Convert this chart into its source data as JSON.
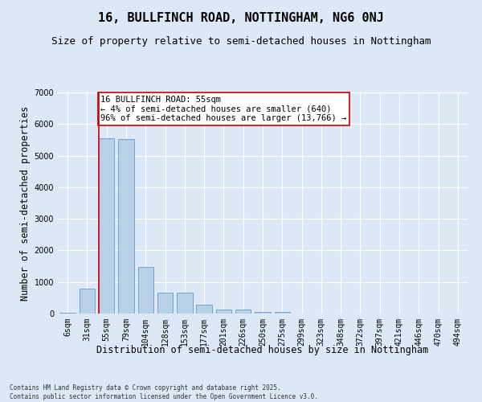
{
  "title": "16, BULLFINCH ROAD, NOTTINGHAM, NG6 0NJ",
  "subtitle": "Size of property relative to semi-detached houses in Nottingham",
  "xlabel": "Distribution of semi-detached houses by size in Nottingham",
  "ylabel": "Number of semi-detached properties",
  "categories": [
    "6sqm",
    "31sqm",
    "55sqm",
    "79sqm",
    "104sqm",
    "128sqm",
    "153sqm",
    "177sqm",
    "201sqm",
    "226sqm",
    "250sqm",
    "275sqm",
    "299sqm",
    "323sqm",
    "348sqm",
    "372sqm",
    "397sqm",
    "421sqm",
    "446sqm",
    "470sqm",
    "494sqm"
  ],
  "values": [
    30,
    800,
    5550,
    5530,
    1470,
    650,
    650,
    290,
    130,
    130,
    60,
    50,
    0,
    0,
    0,
    0,
    0,
    0,
    0,
    0,
    0
  ],
  "bar_color": "#b8d0e8",
  "bar_edge_color": "#6699cc",
  "highlight_index": 2,
  "highlight_line_color": "#cc0000",
  "annotation_text": "16 BULLFINCH ROAD: 55sqm\n← 4% of semi-detached houses are smaller (640)\n96% of semi-detached houses are larger (13,766) →",
  "annotation_box_color": "#ffffff",
  "annotation_box_edge_color": "#cc0000",
  "footer_text": "Contains HM Land Registry data © Crown copyright and database right 2025.\nContains public sector information licensed under the Open Government Licence v3.0.",
  "bg_color": "#dce8f5",
  "plot_bg_color": "#dce8f5",
  "ylim": [
    0,
    7000
  ],
  "yticks": [
    0,
    1000,
    2000,
    3000,
    4000,
    5000,
    6000,
    7000
  ],
  "grid_color": "#ffffff",
  "title_fontsize": 11,
  "subtitle_fontsize": 9,
  "tick_fontsize": 7,
  "label_fontsize": 8.5,
  "annotation_fontsize": 7.5,
  "footer_fontsize": 5.5
}
